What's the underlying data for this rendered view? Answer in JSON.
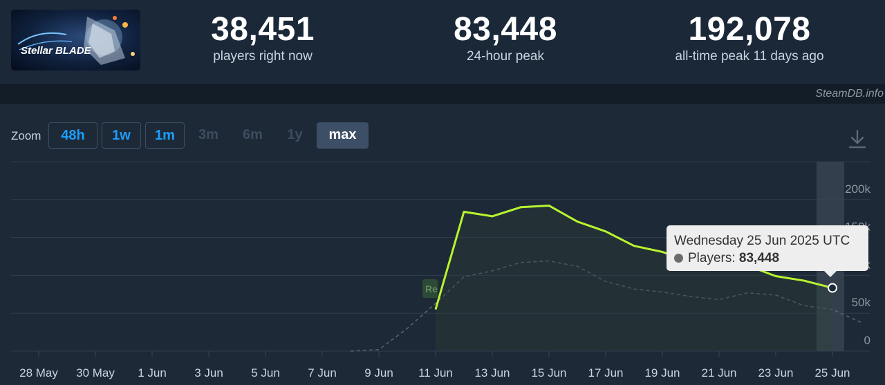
{
  "game": {
    "logo_text": "Stellar BLADE"
  },
  "stats": [
    {
      "value": "38,451",
      "label": "players right now"
    },
    {
      "value": "83,448",
      "label": "24-hour peak"
    },
    {
      "value": "192,078",
      "label": "all-time peak 11 days ago"
    }
  ],
  "credit": "SteamDB.info",
  "zoom": {
    "label": "Zoom",
    "options": [
      {
        "label": "48h",
        "state": "enabled"
      },
      {
        "label": "1w",
        "state": "enabled"
      },
      {
        "label": "1m",
        "state": "enabled"
      },
      {
        "label": "3m",
        "state": "disabled"
      },
      {
        "label": "6m",
        "state": "disabled"
      },
      {
        "label": "1y",
        "state": "disabled"
      },
      {
        "label": "max",
        "state": "selected"
      }
    ]
  },
  "download_icon": "download-icon",
  "tooltip": {
    "title": "Wednesday 25 Jun 2025 UTC",
    "series_label": "Players:",
    "value": "83,448"
  },
  "release_marker": "Re",
  "chart_data": {
    "type": "line",
    "x_ticks": [
      "28 May",
      "30 May",
      "1 Jun",
      "3 Jun",
      "5 Jun",
      "7 Jun",
      "9 Jun",
      "11 Jun",
      "13 Jun",
      "15 Jun",
      "17 Jun",
      "19 Jun",
      "21 Jun",
      "23 Jun",
      "25 Jun"
    ],
    "y_ticks": [
      "0",
      "50k",
      "100k",
      "150k",
      "200k"
    ],
    "ylim": [
      0,
      250000
    ],
    "series": [
      {
        "color": "#b8f52e",
        "points": [
          {
            "x": "2025-06-11",
            "y": 55000
          },
          {
            "x": "2025-06-12",
            "y": 184000
          },
          {
            "x": "2025-06-13",
            "y": 178000
          },
          {
            "x": "2025-06-14",
            "y": 190000
          },
          {
            "x": "2025-06-15",
            "y": 192078
          },
          {
            "x": "2025-06-16",
            "y": 171000
          },
          {
            "x": "2025-06-17",
            "y": 158000
          },
          {
            "x": "2025-06-18",
            "y": 139000
          },
          {
            "x": "2025-06-19",
            "y": 131000
          },
          {
            "x": "2025-06-20",
            "y": 118000
          },
          {
            "x": "2025-06-21",
            "y": 117000
          },
          {
            "x": "2025-06-22",
            "y": 113000
          },
          {
            "x": "2025-06-23",
            "y": 99000
          },
          {
            "x": "2025-06-24",
            "y": 93000
          },
          {
            "x": "2025-06-25",
            "y": 83448
          }
        ]
      },
      {
        "color": "#5a6573",
        "style": "dashed",
        "points": [
          {
            "x": "2025-06-08",
            "y": 0
          },
          {
            "x": "2025-06-09",
            "y": 2000
          },
          {
            "x": "2025-06-10",
            "y": 30000
          },
          {
            "x": "2025-06-11",
            "y": 63000
          },
          {
            "x": "2025-06-12",
            "y": 98000
          },
          {
            "x": "2025-06-13",
            "y": 106000
          },
          {
            "x": "2025-06-14",
            "y": 117000
          },
          {
            "x": "2025-06-15",
            "y": 119000
          },
          {
            "x": "2025-06-16",
            "y": 112000
          },
          {
            "x": "2025-06-17",
            "y": 92000
          },
          {
            "x": "2025-06-18",
            "y": 82000
          },
          {
            "x": "2025-06-19",
            "y": 78000
          },
          {
            "x": "2025-06-20",
            "y": 72000
          },
          {
            "x": "2025-06-21",
            "y": 68000
          },
          {
            "x": "2025-06-22",
            "y": 77000
          },
          {
            "x": "2025-06-23",
            "y": 74000
          },
          {
            "x": "2025-06-24",
            "y": 60000
          },
          {
            "x": "2025-06-25",
            "y": 55000
          },
          {
            "x": "2025-06-26",
            "y": 38000
          }
        ]
      }
    ],
    "highlighted_date": "2025-06-25",
    "grid": true
  }
}
